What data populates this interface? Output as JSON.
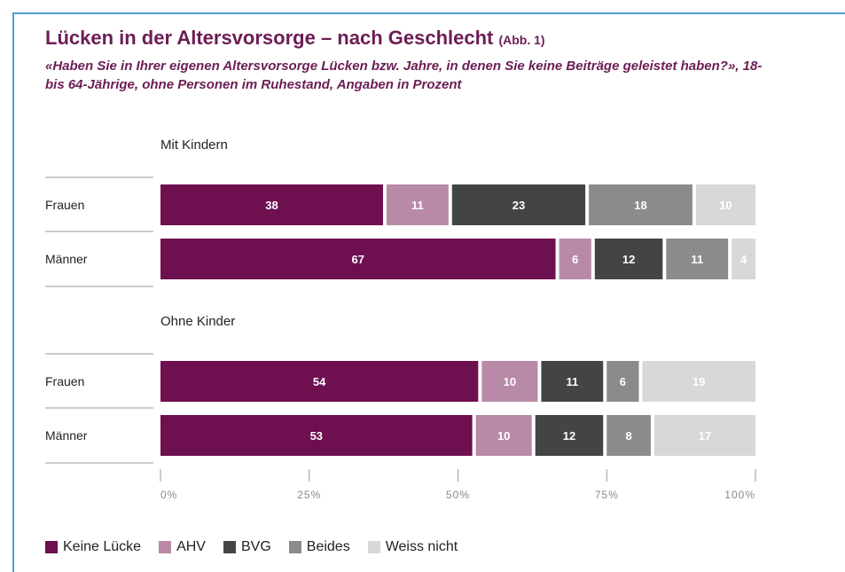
{
  "title": "Lücken in der Altersvorsorge – nach Geschlecht",
  "title_ref": "(Abb. 1)",
  "subtitle": "«Haben Sie in Ihrer eigenen Altersvorsorge Lücken bzw. Jahre, in denen Sie keine Beiträge geleistet haben?», 18- bis 64-Jährige, ohne Personen im Ruhestand, Angaben in Prozent",
  "colors": {
    "title": "#6b1d54",
    "Keine Lücke": "#6e0f4f",
    "AHV": "#b88aa7",
    "BVG": "#434545",
    "Beides": "#8a8b8b",
    "Weiss nicht": "#d8d8d8"
  },
  "chart_data": {
    "type": "bar",
    "orientation": "horizontal",
    "stacked": true,
    "series_names": [
      "Keine Lücke",
      "AHV",
      "BVG",
      "Beides",
      "Weiss nicht"
    ],
    "groups": [
      {
        "label": "Mit Kindern",
        "rows": [
          {
            "label": "Frauen",
            "values": [
              38,
              11,
              23,
              18,
              10
            ]
          },
          {
            "label": "Männer",
            "values": [
              67,
              6,
              12,
              11,
              4
            ]
          }
        ]
      },
      {
        "label": "Ohne Kinder",
        "rows": [
          {
            "label": "Frauen",
            "values": [
              54,
              10,
              11,
              6,
              19
            ]
          },
          {
            "label": "Männer",
            "values": [
              53,
              10,
              12,
              8,
              17
            ]
          }
        ]
      }
    ],
    "xlim": [
      0,
      100
    ],
    "x_ticks": [
      "0%",
      "25%",
      "50%",
      "75%",
      "100%"
    ],
    "legend_position": "bottom"
  }
}
